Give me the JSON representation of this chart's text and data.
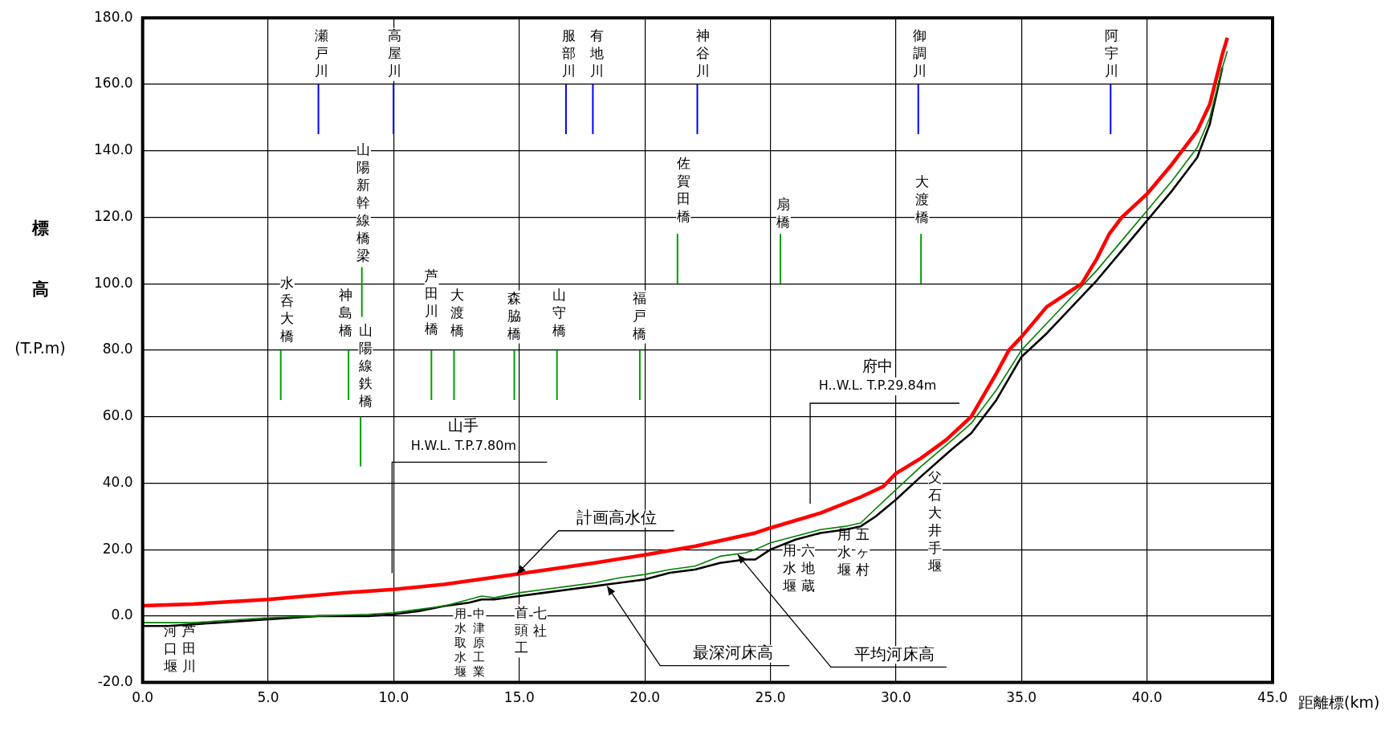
{
  "chart_data": {
    "type": "line",
    "xlabel": "距離標(km)",
    "ylabel": "標高(T.P.m)",
    "xlim": [
      0,
      45
    ],
    "ylim": [
      -20,
      180
    ],
    "xticks": [
      {
        "value": 0,
        "label": "0.0"
      },
      {
        "value": 5,
        "label": "5.0"
      },
      {
        "value": 10,
        "label": "10.0"
      },
      {
        "value": 15,
        "label": "15.0"
      },
      {
        "value": 20,
        "label": "20.0"
      },
      {
        "value": 25,
        "label": "25.0"
      },
      {
        "value": 30,
        "label": "30.0"
      },
      {
        "value": 35,
        "label": "35.0"
      },
      {
        "value": 40,
        "label": "40.0"
      },
      {
        "value": 45,
        "label": "45.0"
      }
    ],
    "yticks": [
      {
        "value": -20,
        "label": "-20.0"
      },
      {
        "value": 0,
        "label": "0.0"
      },
      {
        "value": 20,
        "label": "20.0"
      },
      {
        "value": 40,
        "label": "40.0"
      },
      {
        "value": 60,
        "label": "60.0"
      },
      {
        "value": 80,
        "label": "80.0"
      },
      {
        "value": 100,
        "label": "100.0"
      },
      {
        "value": 120,
        "label": "120.0"
      },
      {
        "value": 140,
        "label": "140.0"
      },
      {
        "value": 160,
        "label": "160.0"
      },
      {
        "value": 180,
        "label": "180.0"
      }
    ],
    "grid": true,
    "series": [
      {
        "color": "#ff0000",
        "x": [
          0,
          2,
          5,
          8,
          10,
          12,
          15,
          18,
          20,
          22,
          24.4,
          25,
          27,
          28.6,
          29.5,
          30,
          31,
          32,
          33,
          34,
          34.5,
          35,
          36,
          37,
          37.4,
          38,
          38.5,
          39,
          40,
          41,
          42,
          42.5,
          43,
          43.2
        ],
        "values": [
          3.1,
          3.6,
          5,
          7,
          8,
          9.5,
          12.7,
          16,
          18.4,
          21,
          25,
          26.5,
          31,
          35.8,
          39,
          42.9,
          47.5,
          53,
          60,
          73,
          80,
          84,
          93,
          98,
          100,
          107.5,
          115,
          120,
          127,
          136,
          146,
          154,
          169,
          174
        ]
      },
      {
        "color": "#008000",
        "x": [
          0,
          1,
          2,
          3,
          5,
          7,
          9,
          10,
          11,
          12,
          13,
          13.5,
          14,
          15,
          16,
          17,
          18,
          19,
          20,
          21,
          22,
          23,
          24,
          24.4,
          25,
          26,
          27,
          28,
          28.6,
          29.15,
          30,
          31,
          32.2,
          33,
          34,
          35,
          36,
          37,
          38,
          39,
          40,
          41,
          42,
          42.5,
          43,
          43.2
        ],
        "values": [
          -2,
          -2,
          -2,
          -1.5,
          -0.5,
          0,
          0.5,
          1,
          2,
          3,
          5,
          6,
          5.5,
          7,
          8,
          9,
          10,
          11.5,
          12.5,
          14,
          15,
          18,
          19,
          20,
          22,
          24,
          26,
          27,
          28,
          32,
          38,
          45,
          52.7,
          58,
          68,
          80,
          88,
          96,
          104,
          113,
          122,
          131,
          141,
          150,
          165,
          170
        ]
      },
      {
        "color": "#000000",
        "x": [
          0,
          1,
          2,
          3,
          5,
          7,
          9,
          10,
          11,
          12,
          13,
          13.5,
          14,
          15,
          16,
          17,
          18,
          19,
          20,
          21,
          22,
          23,
          24,
          24.4,
          25,
          26,
          27,
          28,
          28.6,
          29.2,
          30,
          31,
          32.2,
          33,
          34,
          35,
          36,
          37,
          38,
          39,
          40,
          41,
          42,
          42.5,
          43
        ],
        "values": [
          -3,
          -3,
          -2.5,
          -2,
          -1,
          0,
          0,
          0.5,
          1.5,
          3,
          4,
          5,
          5,
          6,
          7,
          8,
          9,
          10,
          11,
          13,
          14,
          16,
          17,
          17,
          20,
          23,
          25,
          26,
          27,
          30,
          35,
          42,
          50,
          55,
          65,
          78,
          85,
          93,
          101,
          110,
          119,
          128,
          138,
          148,
          165
        ]
      },
      {
        "color": "#0000ff",
        "x": [
          7,
          7
        ],
        "values": [
          145,
          160
        ]
      },
      {
        "color": "#0000ff",
        "x": [
          9.99,
          9.99
        ],
        "values": [
          145,
          160
        ]
      },
      {
        "color": "#0000ff",
        "x": [
          16.86,
          16.86
        ],
        "values": [
          145,
          160
        ]
      },
      {
        "color": "#0000ff",
        "x": [
          17.93,
          17.93
        ],
        "values": [
          145,
          160
        ]
      },
      {
        "color": "#0000ff",
        "x": [
          22.09,
          22.09
        ],
        "values": [
          145,
          160
        ]
      },
      {
        "color": "#0000ff",
        "x": [
          30.89,
          30.89
        ],
        "values": [
          145,
          160
        ]
      },
      {
        "color": "#0000ff",
        "x": [
          38.55,
          38.55
        ],
        "values": [
          145,
          160
        ]
      },
      {
        "color": "#00a000",
        "x": [
          5.5,
          5.5
        ],
        "values": [
          65,
          80
        ]
      },
      {
        "color": "#00a000",
        "x": [
          8.2,
          8.2
        ],
        "values": [
          65,
          80
        ]
      },
      {
        "color": "#00a000",
        "x": [
          8.73,
          8.73
        ],
        "values": [
          90,
          105
        ]
      },
      {
        "color": "#00a000",
        "x": [
          8.68,
          8.68
        ],
        "values": [
          45,
          60
        ]
      },
      {
        "color": "#00a000",
        "x": [
          11.5,
          11.5
        ],
        "values": [
          65,
          80
        ]
      },
      {
        "color": "#00a000",
        "x": [
          12.4,
          12.4
        ],
        "values": [
          65,
          80
        ]
      },
      {
        "color": "#00a000",
        "x": [
          14.8,
          14.8
        ],
        "values": [
          65,
          80
        ]
      },
      {
        "color": "#00a000",
        "x": [
          16.5,
          16.5
        ],
        "values": [
          65,
          80
        ]
      },
      {
        "color": "#00a000",
        "x": [
          19.8,
          19.8
        ],
        "values": [
          65,
          80
        ]
      },
      {
        "color": "#00a000",
        "x": [
          21.3,
          21.3
        ],
        "values": [
          100,
          115
        ]
      },
      {
        "color": "#00a000",
        "x": [
          25.4,
          25.4
        ],
        "values": [
          100,
          115
        ]
      },
      {
        "color": "#00a000",
        "x": [
          31.0,
          31.0
        ],
        "values": [
          100,
          115
        ]
      }
    ],
    "annotations": [
      "瀬戸川",
      "高屋川",
      "服部川",
      "有地川",
      "神谷川",
      "御調川",
      "阿宇川",
      "水呑大橋",
      "神島橋",
      "山陽新幹線橋梁",
      "山陽線鉄橋",
      "芦田川橋",
      "大渡橋",
      "森脇橋",
      "山守橋",
      "福戸橋",
      "佐賀田橋",
      "扇橋",
      "大渡橋",
      "芦田川",
      "河口堰",
      "中津原工業",
      "用水取水堰",
      "七社",
      "首頭工",
      "六地蔵",
      "用水堰",
      "五ヶ村",
      "用水堰",
      "父石大井手堰",
      "山手\nH.W.L. T.P.7.80m",
      "府中\nH..W.L. T.P.29.84m",
      {
        "text": "計画高水位",
        "x": 14.9,
        "y": 12.6
      },
      {
        "text": "最深河床高",
        "x": 18.5,
        "y": 9
      },
      {
        "text": "平均河床高",
        "x": 23.7,
        "y": 18.5
      }
    ]
  }
}
